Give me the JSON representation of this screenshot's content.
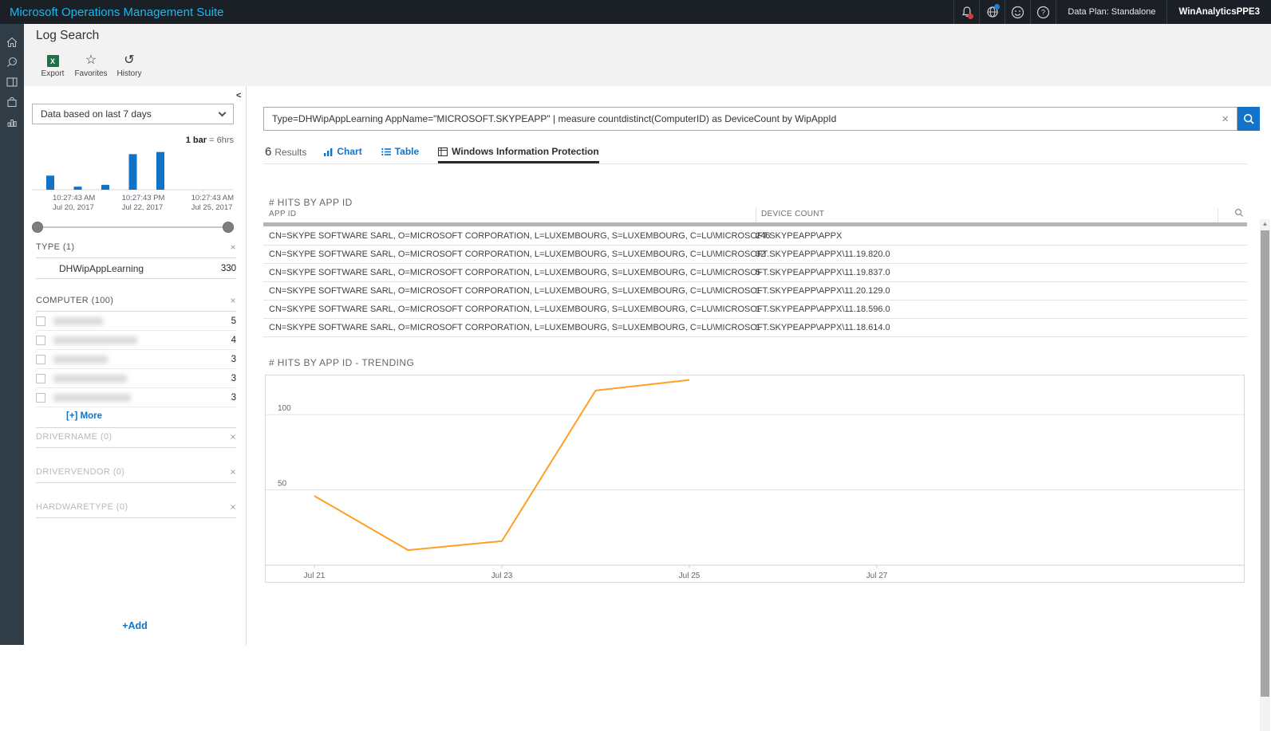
{
  "topbar": {
    "title": "Microsoft Operations Management Suite",
    "data_plan": "Data Plan: Standalone",
    "workspace": "WinAnalyticsPPE3"
  },
  "header": {
    "title": "Log Search",
    "toolbar": {
      "export": "Export",
      "favorites": "Favorites",
      "history": "History"
    }
  },
  "facet_panel": {
    "collapse": "<",
    "time_scope": "Data based on last 7 days",
    "bar_scale_bold": "1 bar",
    "bar_scale_rest": "= 6hrs",
    "groups": [
      {
        "name": "TYPE",
        "count": "(1)",
        "items": [
          {
            "label": "DHWipAppLearning",
            "value": "330"
          }
        ]
      },
      {
        "name": "COMPUTER",
        "count": "(100)",
        "items": [
          {
            "redacted": true,
            "value": "5"
          },
          {
            "redacted": true,
            "value": "4"
          },
          {
            "redacted": true,
            "value": "3"
          },
          {
            "redacted": true,
            "value": "3"
          },
          {
            "redacted": true,
            "value": "3"
          }
        ],
        "more_label": "[+] More"
      },
      {
        "name": "DRIVERNAME",
        "count": "(0)"
      },
      {
        "name": "DRIVERVENDOR",
        "count": "(0)"
      },
      {
        "name": "HARDWARETYPE",
        "count": "(0)"
      }
    ],
    "add_label": "+Add"
  },
  "search": {
    "query": "Type=DHWipAppLearning AppName=\"MICROSOFT.SKYPEAPP\" | measure countdistinct(ComputerID) as DeviceCount by WipAppId"
  },
  "results_bar": {
    "count": "6",
    "results_label": "Results",
    "tabs": [
      {
        "label": "Chart",
        "active": false
      },
      {
        "label": "Table",
        "active": false
      },
      {
        "label": "Windows Information Protection",
        "active": true
      }
    ]
  },
  "hits_table": {
    "title": "# HITS BY APP ID",
    "col_app_id": "APP ID",
    "col_device_count": "DEVICE COUNT",
    "rows": [
      {
        "app_id": "CN=SKYPE SOFTWARE SARL, O=MICROSOFT CORPORATION, L=LUXEMBOURG, S=LUXEMBOURG, C=LU\\MICROSOFT.SKYPEAPP\\APPX",
        "device_count": "246"
      },
      {
        "app_id": "CN=SKYPE SOFTWARE SARL, O=MICROSOFT CORPORATION, L=LUXEMBOURG, S=LUXEMBOURG, C=LU\\MICROSOFT.SKYPEAPP\\APPX\\11.19.820.0",
        "device_count": "32"
      },
      {
        "app_id": "CN=SKYPE SOFTWARE SARL, O=MICROSOFT CORPORATION, L=LUXEMBOURG, S=LUXEMBOURG, C=LU\\MICROSOFT.SKYPEAPP\\APPX\\11.19.837.0",
        "device_count": "5"
      },
      {
        "app_id": "CN=SKYPE SOFTWARE SARL, O=MICROSOFT CORPORATION, L=LUXEMBOURG, S=LUXEMBOURG, C=LU\\MICROSOFT.SKYPEAPP\\APPX\\11.20.129.0",
        "device_count": "1"
      },
      {
        "app_id": "CN=SKYPE SOFTWARE SARL, O=MICROSOFT CORPORATION, L=LUXEMBOURG, S=LUXEMBOURG, C=LU\\MICROSOFT.SKYPEAPP\\APPX\\11.18.596.0",
        "device_count": "1"
      },
      {
        "app_id": "CN=SKYPE SOFTWARE SARL, O=MICROSOFT CORPORATION, L=LUXEMBOURG, S=LUXEMBOURG, C=LU\\MICROSOFT.SKYPEAPP\\APPX\\11.18.614.0",
        "device_count": "1"
      }
    ]
  },
  "chart_data": [
    {
      "id": "time-histogram",
      "type": "bar",
      "note": "1 bar = 6hrs",
      "values": [
        46,
        10,
        16,
        116,
        123
      ],
      "ylim": [
        0,
        130
      ],
      "color": "#1272c8",
      "x_labels": [
        [
          "10:27:43 AM",
          "Jul 20, 2017"
        ],
        [
          "10:27:43 PM",
          "Jul 22, 2017"
        ],
        [
          "10:27:43 AM",
          "Jul 25, 2017"
        ]
      ]
    },
    {
      "id": "hits-trending",
      "type": "line",
      "title": "# HITS BY APP ID - TRENDING",
      "x": [
        "Jul 21",
        "Jul 22",
        "Jul 23",
        "Jul 24",
        "Jul 25"
      ],
      "values": [
        46,
        10,
        16,
        116,
        123
      ],
      "xticks": [
        "Jul 21",
        "Jul 23",
        "Jul 25",
        "Jul 27"
      ],
      "yticks": [
        50,
        100
      ],
      "ylim": [
        0,
        126
      ],
      "color": "#ffa024",
      "grid": true
    }
  ]
}
